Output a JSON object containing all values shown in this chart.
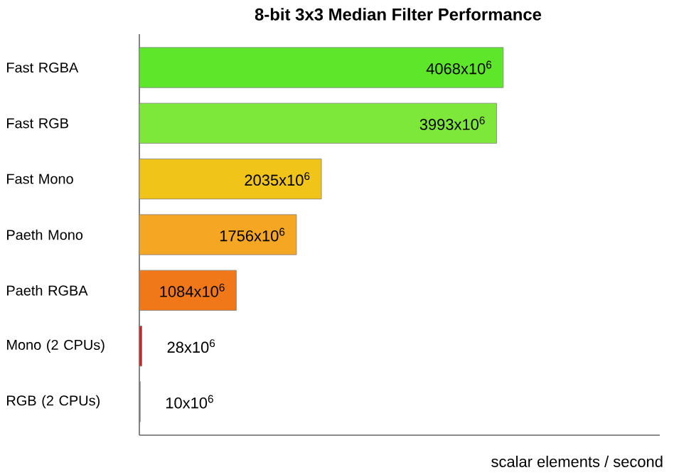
{
  "chart_data": {
    "type": "bar",
    "orientation": "horizontal",
    "title": "8-bit 3x3 Median Filter Performance",
    "xlabel": "scalar elements / second",
    "categories": [
      "Fast RGBA",
      "Fast RGB",
      "Fast Mono",
      "Paeth Mono",
      "Paeth RGBA",
      "Mono (2 CPUs)",
      "RGB (2 CPUs)"
    ],
    "values": [
      4068000000,
      3993000000,
      2035000000,
      1756000000,
      1084000000,
      28000000,
      10000000
    ],
    "value_labels": [
      "4068x10$^{6}$",
      "3993x10$^{6}$",
      "2035x10$^{6}$",
      "1756x10$^{6}$",
      "1084x10$^{6}$",
      "28x10$^{6}$",
      "10x10$^{6}$"
    ],
    "colors": [
      "#5ee62a",
      "#7ee83a",
      "#f0c419",
      "#f5a623",
      "#f07818",
      "#d81e1e",
      "#777777"
    ],
    "tick_labels": "y"
  }
}
